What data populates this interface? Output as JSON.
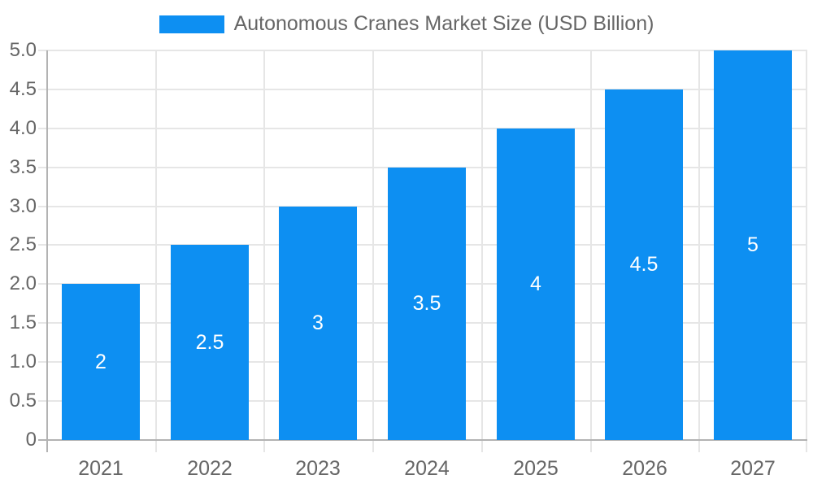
{
  "chart_data": {
    "type": "bar",
    "series_name": "Autonomous Cranes Market Size (USD Billion)",
    "categories": [
      "2021",
      "2022",
      "2023",
      "2024",
      "2025",
      "2026",
      "2027"
    ],
    "values": [
      2,
      2.5,
      3,
      3.5,
      4,
      4.5,
      5
    ],
    "value_labels": [
      "2",
      "2.5",
      "3",
      "3.5",
      "4",
      "4.5",
      "5"
    ],
    "ylim": [
      0,
      5
    ],
    "y_tick_step": 0.5,
    "y_ticks": [
      "0",
      "0.5",
      "1.0",
      "1.5",
      "2.0",
      "2.5",
      "3.0",
      "3.5",
      "4.0",
      "4.5",
      "5.0"
    ],
    "grid": true,
    "legend_position": "top-center",
    "colors": {
      "bar": "#0d8ff2",
      "grid": "#e6e6e6",
      "axis": "#b3b3b3",
      "tick_text": "#666666",
      "legend_text": "#666666",
      "value_text": "#ffffff",
      "background": "#ffffff"
    }
  }
}
